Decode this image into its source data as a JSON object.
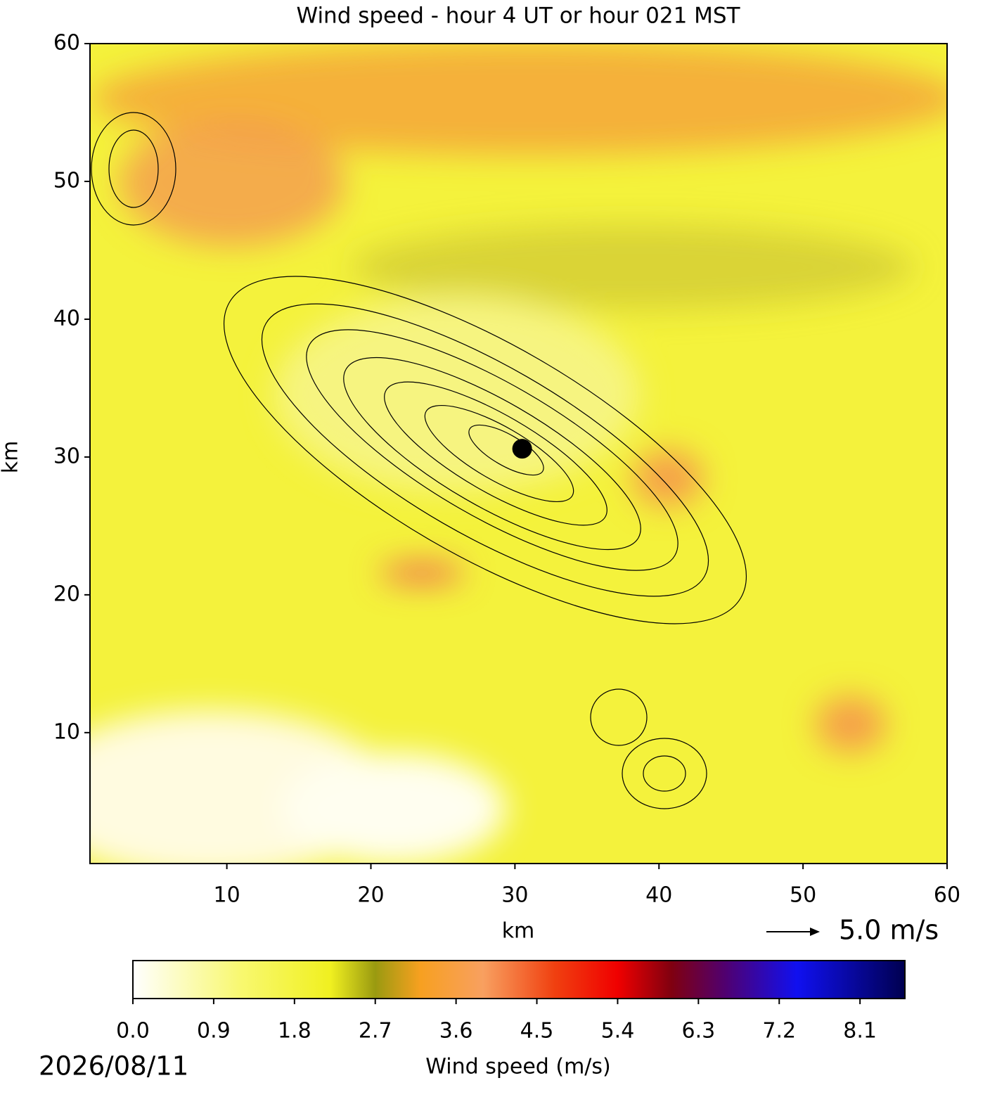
{
  "chart_data": {
    "type": "heatmap",
    "title": "Wind speed - hour 4 UT or hour 021 MST",
    "x_label": "km",
    "y_label": "km",
    "xlim": [
      0.5,
      60
    ],
    "ylim": [
      0.5,
      60
    ],
    "xticks": [
      10,
      20,
      30,
      40,
      50,
      60
    ],
    "yticks": [
      10,
      20,
      30,
      40,
      50,
      60
    ],
    "marker": {
      "x": 30.5,
      "y": 30.6,
      "color": "#000000"
    },
    "reference_arrow": {
      "value": 5.0,
      "label": "5.0 m/s"
    },
    "colorbar": {
      "label": "Wind speed (m/s)",
      "clim": [
        0,
        8.6
      ],
      "ticks": [
        {
          "value": 0,
          "label": "0.0"
        },
        0.9,
        1.8,
        2.7,
        3.6,
        4.5,
        5.4,
        6.3,
        7.2,
        8.1
      ],
      "colormap": [
        {
          "value": 0,
          "color": "#ffffff"
        },
        {
          "value": 1.2,
          "color": "#f8f870"
        },
        {
          "value": 2.2,
          "color": "#f0f020"
        },
        {
          "value": 2.7,
          "color": "#9a9a10"
        },
        {
          "value": 3.2,
          "color": "#f7a020"
        },
        {
          "value": 3.9,
          "color": "#f8a060"
        },
        {
          "value": 4.7,
          "color": "#f04010"
        },
        {
          "value": 5.4,
          "color": "#f00000"
        },
        {
          "value": 6.0,
          "color": "#800010"
        },
        {
          "value": 6.6,
          "color": "#500070"
        },
        {
          "value": 7.4,
          "color": "#1010f0"
        },
        {
          "value": 8.6,
          "color": "#000050"
        }
      ]
    },
    "date": "2026/08/11"
  }
}
